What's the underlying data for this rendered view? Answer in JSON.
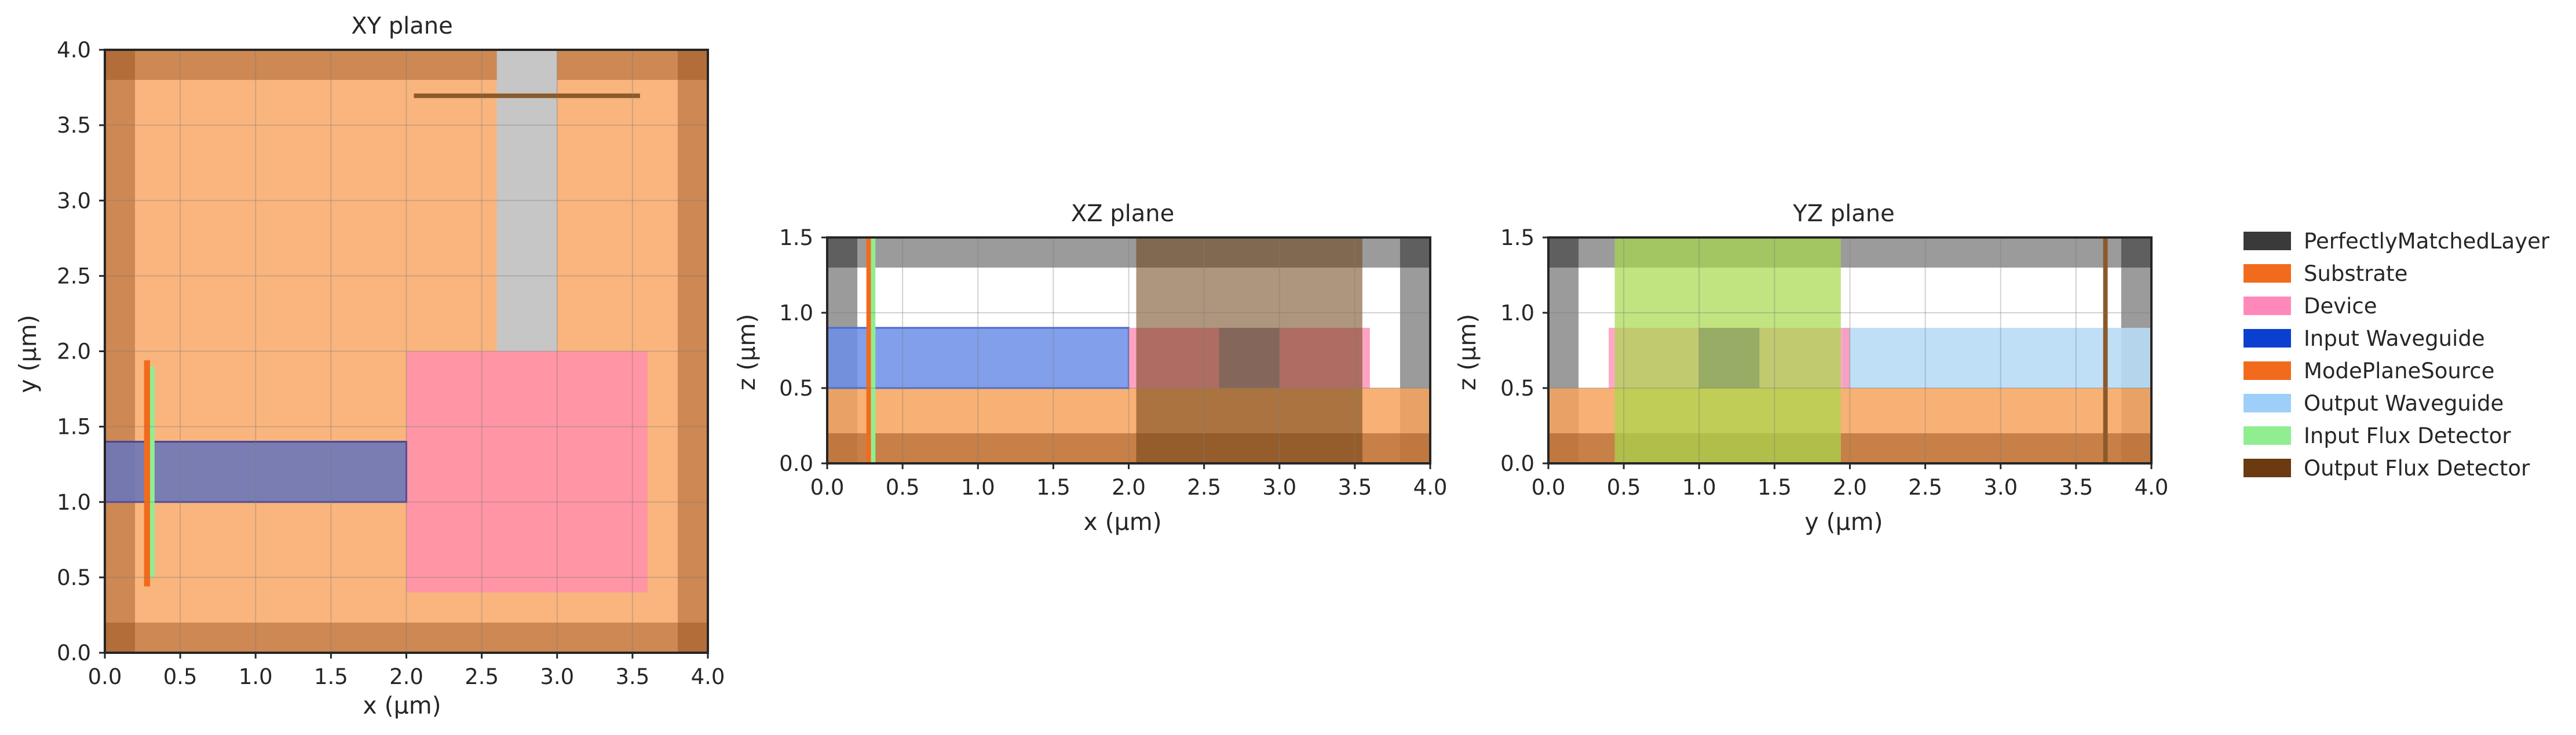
{
  "panels": [
    {
      "id": "xy",
      "title": "XY plane",
      "xlabel": "x (µm)",
      "ylabel": "y (µm)",
      "xlim": [
        0,
        4
      ],
      "ylim": [
        0,
        4
      ],
      "xticks": [
        "0.0",
        "0.5",
        "1.0",
        "1.5",
        "2.0",
        "2.5",
        "3.0",
        "3.5",
        "4.0"
      ],
      "yticks": [
        "0.0",
        "0.5",
        "1.0",
        "1.5",
        "2.0",
        "2.5",
        "3.0",
        "3.5",
        "4.0"
      ],
      "regions": [
        {
          "name": "substrate",
          "x0": 0,
          "x1": 4,
          "y0": 0,
          "y1": 4,
          "color": "#f7a35c",
          "opacity": 0.8
        },
        {
          "name": "pml-left",
          "x0": 0,
          "x1": 0.2,
          "y0": 0,
          "y1": 4,
          "color": "#8b4513",
          "opacity": 0.4
        },
        {
          "name": "pml-right",
          "x0": 3.8,
          "x1": 4,
          "y0": 0,
          "y1": 4,
          "color": "#8b4513",
          "opacity": 0.4
        },
        {
          "name": "pml-bottom",
          "x0": 0,
          "x1": 4,
          "y0": 0,
          "y1": 0.2,
          "color": "#8b4513",
          "opacity": 0.4
        },
        {
          "name": "pml-top",
          "x0": 0,
          "x1": 4,
          "y0": 3.8,
          "y1": 4,
          "color": "#8b4513",
          "opacity": 0.4
        },
        {
          "name": "output-waveguide",
          "x0": 2.6,
          "x1": 3.0,
          "y0": 2.0,
          "y1": 4.0,
          "color": "#c6c6c6",
          "opacity": 1
        },
        {
          "name": "device",
          "x0": 2.0,
          "x1": 3.6,
          "y0": 0.4,
          "y1": 2.0,
          "color": "#ff93a8",
          "opacity": 0.95
        },
        {
          "name": "input-waveguide",
          "x0": 0,
          "x1": 2.0,
          "y0": 1.0,
          "y1": 1.4,
          "color": "#6b77b8",
          "opacity": 0.9,
          "stroke": "#4a3f9a"
        },
        {
          "name": "mode-source",
          "x0": 0.26,
          "x1": 0.3,
          "y0": 0.44,
          "y1": 1.94,
          "color": "#f26b1d",
          "opacity": 1
        },
        {
          "name": "input-flux-detector",
          "x0": 0.3,
          "x1": 0.33,
          "y0": 0.5,
          "y1": 1.9,
          "color": "#90ee90",
          "opacity": 1
        },
        {
          "name": "output-flux-detector",
          "x0": 2.05,
          "x1": 3.55,
          "y0": 3.68,
          "y1": 3.71,
          "color": "#8b5a2b",
          "opacity": 1
        }
      ]
    },
    {
      "id": "xz",
      "title": "XZ plane",
      "xlabel": "x (µm)",
      "ylabel": "z (µm)",
      "xlim": [
        0,
        4
      ],
      "ylim": [
        0,
        1.5
      ],
      "xticks": [
        "0.0",
        "0.5",
        "1.0",
        "1.5",
        "2.0",
        "2.5",
        "3.0",
        "3.5",
        "4.0"
      ],
      "yticks": [
        "0.0",
        "0.5",
        "1.0",
        "1.5"
      ],
      "regions": [
        {
          "name": "pml-top",
          "x0": 0,
          "x1": 4,
          "y0": 1.3,
          "y1": 1.5,
          "color": "#8a8a8a",
          "opacity": 0.85
        },
        {
          "name": "pml-left",
          "x0": 0,
          "x1": 0.2,
          "y0": 0,
          "y1": 1.5,
          "color": "#8a8a8a",
          "opacity": 0.85
        },
        {
          "name": "pml-right",
          "x0": 3.8,
          "x1": 4,
          "y0": 0,
          "y1": 1.5,
          "color": "#8a8a8a",
          "opacity": 0.85
        },
        {
          "name": "pml-corner-tl",
          "x0": 0,
          "x1": 0.2,
          "y0": 1.3,
          "y1": 1.5,
          "color": "#5a5a5a",
          "opacity": 0.9
        },
        {
          "name": "pml-corner-tr",
          "x0": 3.8,
          "x1": 4,
          "y0": 1.3,
          "y1": 1.5,
          "color": "#5a5a5a",
          "opacity": 0.9
        },
        {
          "name": "substrate",
          "x0": 0,
          "x1": 4,
          "y0": 0,
          "y1": 0.5,
          "color": "#f7a35c",
          "opacity": 0.85
        },
        {
          "name": "pml-bottom",
          "x0": 0,
          "x1": 4,
          "y0": 0,
          "y1": 0.2,
          "color": "#8b4513",
          "opacity": 0.45
        },
        {
          "name": "input-waveguide",
          "x0": 0,
          "x1": 2.0,
          "y0": 0.5,
          "y1": 0.9,
          "color": "#6b8ee8",
          "opacity": 0.85,
          "stroke": "#4a6ad0"
        },
        {
          "name": "device",
          "x0": 2.0,
          "x1": 3.6,
          "y0": 0.5,
          "y1": 0.9,
          "color": "#ff93b8",
          "opacity": 0.85
        },
        {
          "name": "device-core",
          "x0": 2.6,
          "x1": 3.0,
          "y0": 0.5,
          "y1": 0.9,
          "color": "#7f8fa8",
          "opacity": 0.7
        },
        {
          "name": "output-flux-detector",
          "x0": 2.05,
          "x1": 3.55,
          "y0": 0,
          "y1": 1.5,
          "color": "#6b3f14",
          "opacity": 0.55
        },
        {
          "name": "mode-source",
          "x0": 0.26,
          "x1": 0.29,
          "y0": 0,
          "y1": 1.5,
          "color": "#f26b1d",
          "opacity": 1
        },
        {
          "name": "input-flux-detector",
          "x0": 0.29,
          "x1": 0.32,
          "y0": 0,
          "y1": 1.5,
          "color": "#90ee90",
          "opacity": 1
        }
      ]
    },
    {
      "id": "yz",
      "title": "YZ plane",
      "xlabel": "y (µm)",
      "ylabel": "z (µm)",
      "xlim": [
        0,
        4
      ],
      "ylim": [
        0,
        1.5
      ],
      "xticks": [
        "0.0",
        "0.5",
        "1.0",
        "1.5",
        "2.0",
        "2.5",
        "3.0",
        "3.5",
        "4.0"
      ],
      "yticks": [
        "0.0",
        "0.5",
        "1.0",
        "1.5"
      ],
      "regions": [
        {
          "name": "pml-top",
          "x0": 0,
          "x1": 4,
          "y0": 1.3,
          "y1": 1.5,
          "color": "#8a8a8a",
          "opacity": 0.85
        },
        {
          "name": "pml-left",
          "x0": 0,
          "x1": 0.2,
          "y0": 0,
          "y1": 1.5,
          "color": "#8a8a8a",
          "opacity": 0.85
        },
        {
          "name": "pml-right",
          "x0": 3.8,
          "x1": 4,
          "y0": 0,
          "y1": 1.5,
          "color": "#8a8a8a",
          "opacity": 0.85
        },
        {
          "name": "pml-corner-tl",
          "x0": 0,
          "x1": 0.2,
          "y0": 1.3,
          "y1": 1.5,
          "color": "#5a5a5a",
          "opacity": 0.9
        },
        {
          "name": "pml-corner-tr",
          "x0": 3.8,
          "x1": 4,
          "y0": 1.3,
          "y1": 1.5,
          "color": "#5a5a5a",
          "opacity": 0.9
        },
        {
          "name": "substrate",
          "x0": 0,
          "x1": 4,
          "y0": 0,
          "y1": 0.5,
          "color": "#f7a35c",
          "opacity": 0.85
        },
        {
          "name": "pml-bottom",
          "x0": 0,
          "x1": 4,
          "y0": 0,
          "y1": 0.2,
          "color": "#8b4513",
          "opacity": 0.45
        },
        {
          "name": "output-waveguide",
          "x0": 1.95,
          "x1": 4.0,
          "y0": 0.5,
          "y1": 0.9,
          "color": "#b8dcf6",
          "opacity": 0.9
        },
        {
          "name": "device",
          "x0": 0.4,
          "x1": 2.0,
          "y0": 0.5,
          "y1": 0.9,
          "color": "#ff93b8",
          "opacity": 0.8
        },
        {
          "name": "input-flux-detector",
          "x0": 0.44,
          "x1": 1.94,
          "y0": 0,
          "y1": 1.5,
          "color": "#a8d84a",
          "opacity": 0.7
        },
        {
          "name": "input-waveguide",
          "x0": 1.0,
          "x1": 1.4,
          "y0": 0.5,
          "y1": 0.9,
          "color": "#6b8e5a",
          "opacity": 0.5
        },
        {
          "name": "output-flux-detector",
          "x0": 3.68,
          "x1": 3.71,
          "y0": 0,
          "y1": 1.5,
          "color": "#8b5a2b",
          "opacity": 1
        }
      ]
    }
  ],
  "legend": [
    {
      "label": "PerfectlyMatchedLayer",
      "color": "#3a3a3a"
    },
    {
      "label": "Substrate",
      "color": "#f26b1d"
    },
    {
      "label": "Device",
      "color": "#ff88bb"
    },
    {
      "label": "Input Waveguide",
      "color": "#0a3fd0"
    },
    {
      "label": "ModePlaneSource",
      "color": "#f26b1d"
    },
    {
      "label": "Output Waveguide",
      "color": "#9dcff8"
    },
    {
      "label": "Input Flux Detector",
      "color": "#90ee90"
    },
    {
      "label": "Output Flux Detector",
      "color": "#6b3a10"
    }
  ]
}
